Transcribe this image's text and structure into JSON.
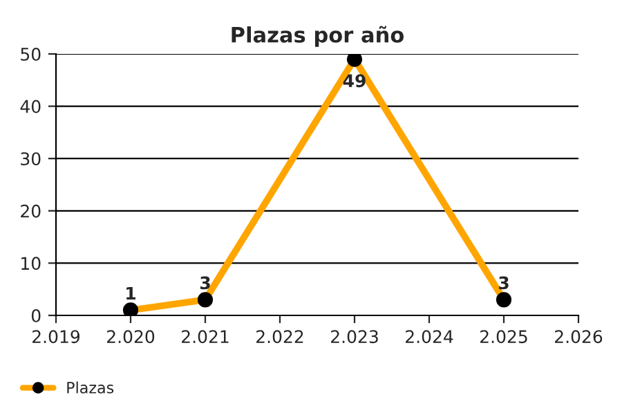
{
  "chart_data": {
    "type": "line",
    "title": "Plazas por año",
    "x": [
      2020,
      2021,
      2023,
      2025
    ],
    "series": [
      {
        "name": "Plazas",
        "color": "#ffa500",
        "values": [
          1,
          3,
          49,
          3
        ]
      }
    ],
    "xlim": [
      2019,
      2026
    ],
    "xticks": [
      {
        "value": 2019,
        "label": "2.019"
      },
      {
        "value": 2020,
        "label": "2.020"
      },
      {
        "value": 2021,
        "label": "2.021"
      },
      {
        "value": 2022,
        "label": "2.022"
      },
      {
        "value": 2023,
        "label": "2.023"
      },
      {
        "value": 2024,
        "label": "2.024"
      },
      {
        "value": 2025,
        "label": "2.025"
      },
      {
        "value": 2026,
        "label": "2.026"
      }
    ],
    "ylim": [
      0,
      50
    ],
    "yticks": [
      0,
      10,
      20,
      30,
      40,
      50
    ],
    "grid": "y",
    "legend": "bottom left",
    "marker": "circle",
    "line_style": "solid",
    "data_labels": true
  }
}
